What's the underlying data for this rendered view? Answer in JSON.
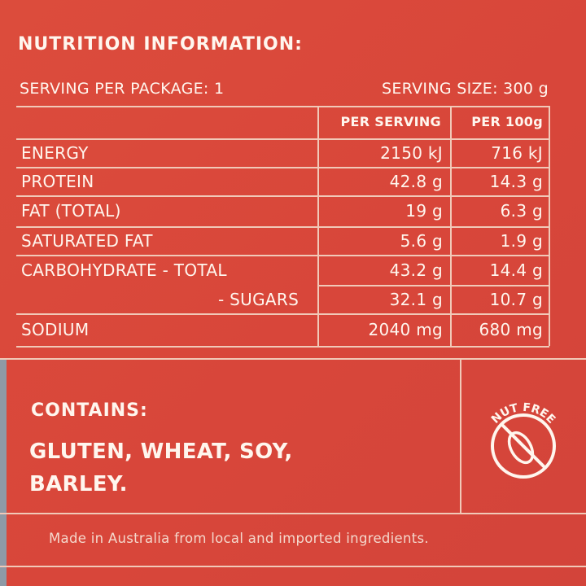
{
  "header": {
    "title": "NUTRITION INFORMATION:",
    "servings_per_package": "SERVING PER PACKAGE: 1",
    "serving_size": "SERVING SIZE: 300 g"
  },
  "table": {
    "columns": [
      "PER SERVING",
      "PER 100g"
    ],
    "rows": [
      [
        "ENERGY",
        "2150 kJ",
        "716 kJ"
      ],
      [
        "PROTEIN",
        "42.8 g",
        "14.3 g"
      ],
      [
        "FAT (TOTAL)",
        "19 g",
        "6.3 g"
      ],
      [
        "SATURATED FAT",
        "5.6 g",
        "1.9 g"
      ],
      [
        "CARBOHYDRATE - TOTAL",
        "43.2 g",
        "14.4 g"
      ],
      [
        "- SUGARS",
        "32.1 g",
        "10.7 g"
      ],
      [
        "SODIUM",
        "2040 mg",
        "680 mg"
      ]
    ]
  },
  "allergens": {
    "label": "CONTAINS:",
    "items": "GLUTEN, WHEAT, SOY, BARLEY."
  },
  "badge": "NUT FREE",
  "footer": "Made in Australia from local and imported ingredients."
}
